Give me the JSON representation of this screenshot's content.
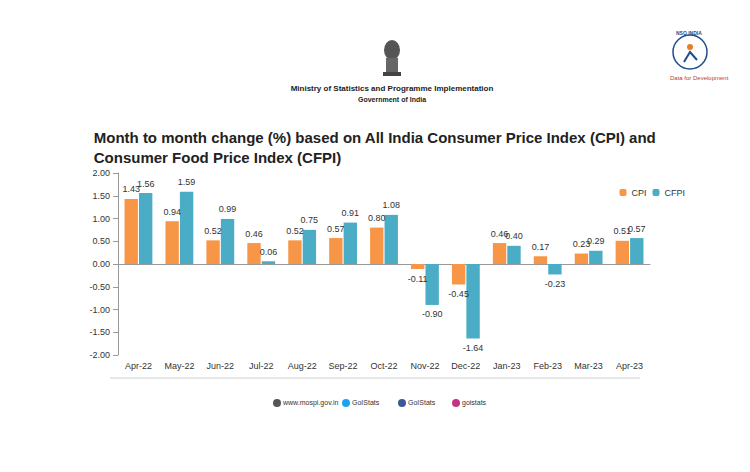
{
  "header": {
    "ministry": "Ministry of Statistics and Programme Implementation",
    "government": "Government of India",
    "logo_text": "NSO INDIA",
    "tagline": "Data for Development"
  },
  "chart_data": {
    "type": "bar",
    "title": "Month to month change (%) based on All India Consumer Price Index (CPI) and\nConsumer Food Price Index (CFPI)",
    "categories": [
      "Apr-22",
      "May-22",
      "Jun-22",
      "Jul-22",
      "Aug-22",
      "Sep-22",
      "Oct-22",
      "Nov-22",
      "Dec-22",
      "Jan-23",
      "Feb-23",
      "Mar-23",
      "Apr-23"
    ],
    "series": [
      {
        "name": "CPI",
        "color": "#f79646",
        "values": [
          1.43,
          0.94,
          0.52,
          0.46,
          0.52,
          0.57,
          0.8,
          -0.11,
          -0.45,
          0.46,
          0.17,
          0.23,
          0.51
        ],
        "value_labels": [
          "1.43",
          "0.94",
          "0.52",
          "0.46",
          "0.52",
          "0.57",
          "0.80",
          "-0.11",
          "-0.45",
          "0.46",
          "0.17",
          "0.23",
          "0.51"
        ]
      },
      {
        "name": "CFPI",
        "color": "#4bacc6",
        "values": [
          1.56,
          1.59,
          0.99,
          0.06,
          0.75,
          0.91,
          1.08,
          -0.9,
          -1.64,
          0.4,
          -0.23,
          0.29,
          0.57
        ],
        "value_labels": [
          "1.56",
          "1.59",
          "0.99",
          "0.06",
          "0.75",
          "0.91",
          "1.08",
          "-0.90",
          "-1.64",
          "0.40",
          "-0.23",
          "0.29",
          "0.57"
        ]
      }
    ],
    "ylim": [
      -2,
      2
    ],
    "yticks": [
      {
        "value": -2,
        "label": "-2.00"
      },
      {
        "value": -1.5,
        "label": "-1.50"
      },
      {
        "value": -1,
        "label": "-1.00"
      },
      {
        "value": -0.5,
        "label": "-0.50"
      },
      {
        "value": 0,
        "label": "0.00"
      },
      {
        "value": 0.5,
        "label": "0.50"
      },
      {
        "value": 1,
        "label": "1.00"
      },
      {
        "value": 1.5,
        "label": "1.50"
      },
      {
        "value": 2,
        "label": "2.00"
      }
    ],
    "grid": false,
    "legend": "top-right",
    "data_labels": true
  },
  "footer": {
    "website": "www.mospi.gov.in",
    "twitter": "GoIStats",
    "facebook": "GoIStats",
    "instagram": "goistats"
  }
}
